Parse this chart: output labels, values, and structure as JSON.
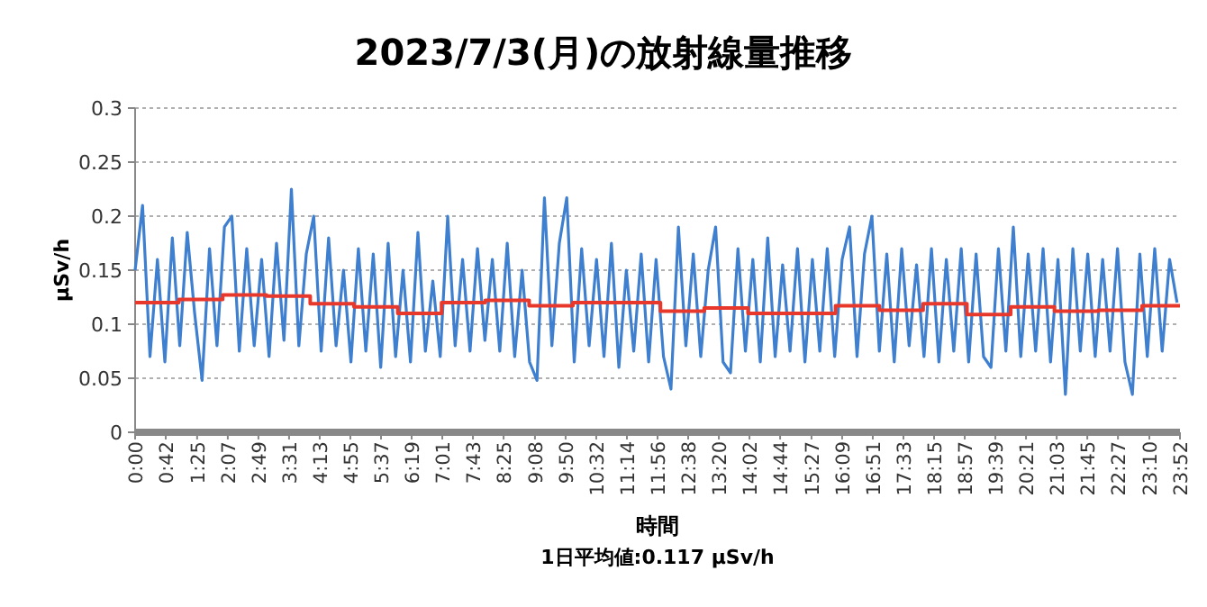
{
  "chart_data": {
    "type": "line",
    "title": "2023/7/3(月)の放射線量推移",
    "xlabel": "時間",
    "ylabel": "μSv/h",
    "annotations": [
      "1日平均値:0.117 μSv/h"
    ],
    "xlim": [
      0,
      23.8667
    ],
    "ylim": [
      0,
      0.3
    ],
    "yticks": [
      0,
      0.05,
      0.1,
      0.15,
      0.2,
      0.25,
      0.3
    ],
    "xticks": [
      {
        "value": 0,
        "label": "0:00"
      },
      {
        "value": 0.7,
        "label": "0:42"
      },
      {
        "value": 1.4167,
        "label": "1:25"
      },
      {
        "value": 2.1167,
        "label": "2:07"
      },
      {
        "value": 2.8167,
        "label": "2:49"
      },
      {
        "value": 3.5167,
        "label": "3:31"
      },
      {
        "value": 4.2167,
        "label": "4:13"
      },
      {
        "value": 4.9167,
        "label": "4:55"
      },
      {
        "value": 5.6167,
        "label": "5:37"
      },
      {
        "value": 6.3167,
        "label": "6:19"
      },
      {
        "value": 7.0167,
        "label": "7:01"
      },
      {
        "value": 7.7167,
        "label": "7:43"
      },
      {
        "value": 8.4167,
        "label": "8:25"
      },
      {
        "value": 9.1333,
        "label": "9:08"
      },
      {
        "value": 9.8333,
        "label": "9:50"
      },
      {
        "value": 10.5333,
        "label": "10:32"
      },
      {
        "value": 11.2333,
        "label": "11:14"
      },
      {
        "value": 11.9333,
        "label": "11:56"
      },
      {
        "value": 12.6333,
        "label": "12:38"
      },
      {
        "value": 13.3333,
        "label": "13:20"
      },
      {
        "value": 14.0333,
        "label": "14:02"
      },
      {
        "value": 14.7333,
        "label": "14:44"
      },
      {
        "value": 15.45,
        "label": "15:27"
      },
      {
        "value": 16.15,
        "label": "16:09"
      },
      {
        "value": 16.85,
        "label": "16:51"
      },
      {
        "value": 17.55,
        "label": "17:33"
      },
      {
        "value": 18.25,
        "label": "18:15"
      },
      {
        "value": 18.95,
        "label": "18:57"
      },
      {
        "value": 19.65,
        "label": "19:39"
      },
      {
        "value": 20.35,
        "label": "20:21"
      },
      {
        "value": 21.05,
        "label": "21:03"
      },
      {
        "value": 21.75,
        "label": "21:45"
      },
      {
        "value": 22.45,
        "label": "22:27"
      },
      {
        "value": 23.1667,
        "label": "23:10"
      },
      {
        "value": 23.8667,
        "label": "23:52"
      }
    ],
    "grid": "y",
    "series": [
      {
        "type": "line",
        "color": "#3f7fd0",
        "x": [
          0,
          0.17,
          0.34,
          0.51,
          0.68,
          0.85,
          1.02,
          1.19,
          1.36,
          1.53,
          1.7,
          1.87,
          2.04,
          2.21,
          2.38,
          2.55,
          2.72,
          2.89,
          3.06,
          3.23,
          3.4,
          3.57,
          3.74,
          3.91,
          4.08,
          4.25,
          4.42,
          4.59,
          4.76,
          4.93,
          5.1,
          5.27,
          5.44,
          5.61,
          5.78,
          5.95,
          6.12,
          6.29,
          6.46,
          6.63,
          6.8,
          6.97,
          7.14,
          7.31,
          7.48,
          7.65,
          7.82,
          7.99,
          8.16,
          8.33,
          8.5,
          8.67,
          8.84,
          9.01,
          9.18,
          9.35,
          9.52,
          9.69,
          9.86,
          10.03,
          10.2,
          10.37,
          10.54,
          10.71,
          10.88,
          11.05,
          11.22,
          11.39,
          11.56,
          11.73,
          11.9,
          12.07,
          12.24,
          12.41,
          12.58,
          12.75,
          12.92,
          13.09,
          13.26,
          13.43,
          13.6,
          13.77,
          13.94,
          14.11,
          14.28,
          14.45,
          14.62,
          14.79,
          14.96,
          15.13,
          15.3,
          15.47,
          15.64,
          15.81,
          15.98,
          16.15,
          16.32,
          16.49,
          16.66,
          16.83,
          17,
          17.17,
          17.34,
          17.51,
          17.68,
          17.85,
          18.02,
          18.19,
          18.36,
          18.53,
          18.7,
          18.87,
          19.04,
          19.21,
          19.38,
          19.55,
          19.72,
          19.89,
          20.06,
          20.23,
          20.4,
          20.57,
          20.74,
          20.91,
          21.08,
          21.25,
          21.42,
          21.59,
          21.76,
          21.93,
          22.1,
          22.27,
          22.44,
          22.61,
          22.78,
          22.95,
          23.12,
          23.29,
          23.46,
          23.63,
          23.8
        ],
        "values": [
          0.15,
          0.21,
          0.07,
          0.16,
          0.065,
          0.18,
          0.08,
          0.185,
          0.11,
          0.048,
          0.17,
          0.08,
          0.19,
          0.2,
          0.075,
          0.17,
          0.08,
          0.16,
          0.07,
          0.175,
          0.085,
          0.225,
          0.08,
          0.165,
          0.2,
          0.075,
          0.18,
          0.08,
          0.15,
          0.065,
          0.17,
          0.075,
          0.165,
          0.06,
          0.175,
          0.07,
          0.15,
          0.065,
          0.185,
          0.075,
          0.14,
          0.07,
          0.2,
          0.08,
          0.16,
          0.075,
          0.17,
          0.085,
          0.16,
          0.075,
          0.175,
          0.07,
          0.15,
          0.065,
          0.048,
          0.217,
          0.08,
          0.175,
          0.217,
          0.065,
          0.17,
          0.08,
          0.16,
          0.07,
          0.175,
          0.06,
          0.15,
          0.075,
          0.165,
          0.065,
          0.16,
          0.07,
          0.04,
          0.19,
          0.08,
          0.165,
          0.07,
          0.15,
          0.19,
          0.065,
          0.055,
          0.17,
          0.075,
          0.16,
          0.065,
          0.18,
          0.07,
          0.155,
          0.075,
          0.17,
          0.065,
          0.16,
          0.075,
          0.17,
          0.07,
          0.16,
          0.19,
          0.07,
          0.165,
          0.2,
          0.075,
          0.165,
          0.065,
          0.17,
          0.08,
          0.155,
          0.07,
          0.17,
          0.065,
          0.16,
          0.075,
          0.17,
          0.065,
          0.165,
          0.07,
          0.06,
          0.17,
          0.075,
          0.19,
          0.07,
          0.165,
          0.075,
          0.17,
          0.065,
          0.16,
          0.035,
          0.17,
          0.075,
          0.165,
          0.07,
          0.16,
          0.075,
          0.17,
          0.065,
          0.035,
          0.165,
          0.07,
          0.17,
          0.075,
          0.16,
          0.12
        ]
      },
      {
        "type": "step",
        "color": "#e8382c",
        "x": [
          0,
          1,
          2,
          3,
          4,
          5,
          6,
          7,
          8,
          9,
          10,
          11,
          12,
          13,
          14,
          15,
          16,
          17,
          18,
          19,
          20,
          21,
          22,
          23,
          23.8667
        ],
        "values": [
          0.12,
          0.123,
          0.127,
          0.126,
          0.119,
          0.116,
          0.11,
          0.12,
          0.122,
          0.117,
          0.12,
          0.12,
          0.112,
          0.115,
          0.11,
          0.11,
          0.117,
          0.113,
          0.119,
          0.109,
          0.116,
          0.112,
          0.113,
          0.117,
          0.117
        ]
      }
    ]
  }
}
